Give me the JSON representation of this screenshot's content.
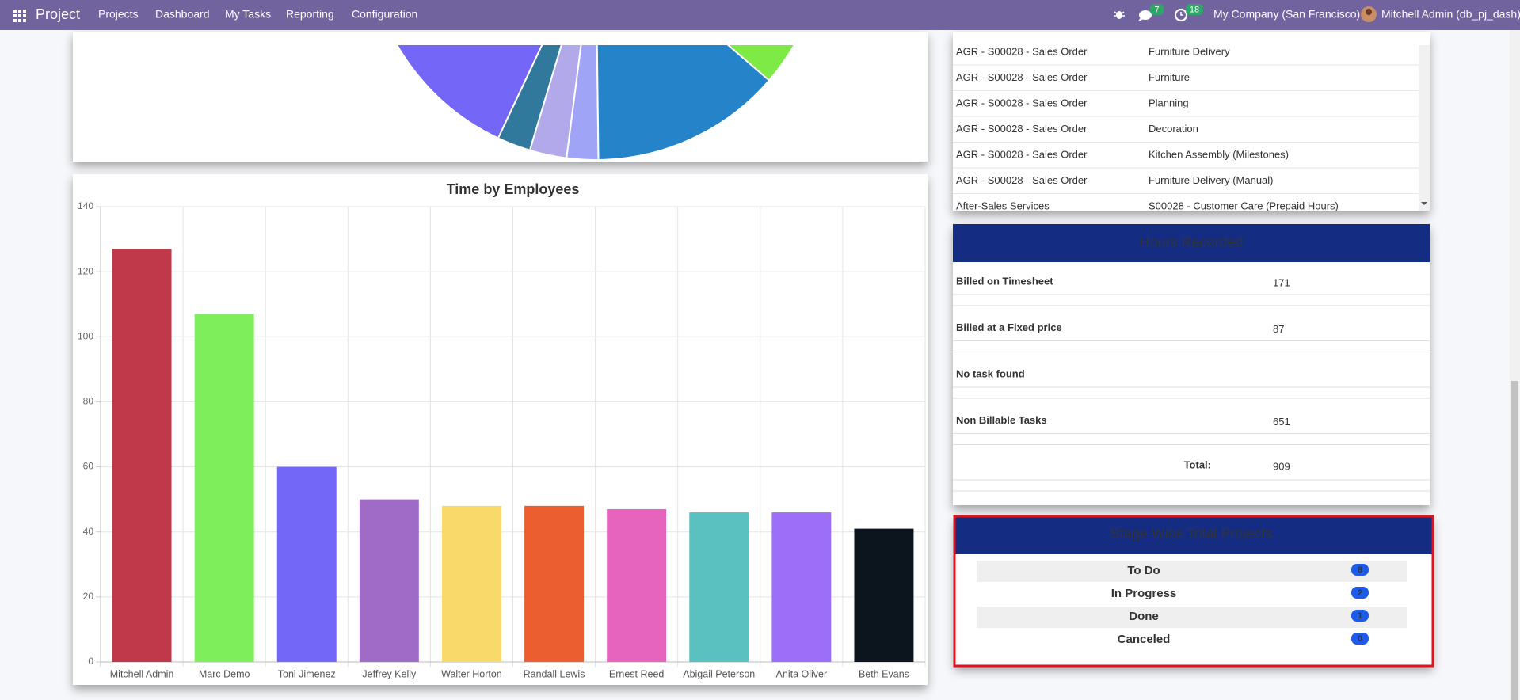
{
  "navbar": {
    "app": "Project",
    "menu": [
      "Projects",
      "Dashboard",
      "My Tasks",
      "Reporting",
      "Configuration"
    ],
    "messages_badge": "7",
    "activities_badge": "18",
    "company": "My Company (San Francisco)",
    "user": "Mitchell Admin (db_pj_dash)"
  },
  "chart_data": {
    "type": "bar",
    "title": "Time by Employees",
    "categories": [
      "Mitchell Admin",
      "Marc Demo",
      "Toni Jimenez",
      "Jeffrey Kelly",
      "Walter Horton",
      "Randall Lewis",
      "Ernest Reed",
      "Abigail Peterson",
      "Anita Oliver",
      "Beth Evans"
    ],
    "values": [
      127,
      107,
      60,
      50,
      48,
      48,
      47,
      46,
      46,
      41
    ],
    "colors": [
      "#c0394a",
      "#7eee5a",
      "#7367f8",
      "#9f6bc6",
      "#f9d96a",
      "#eb5e30",
      "#e764be",
      "#5bc1c0",
      "#9d6ef8",
      "#0c151d"
    ],
    "ylim": [
      0,
      140
    ],
    "yticks": [
      0,
      20,
      40,
      60,
      80,
      100,
      120,
      140
    ],
    "grid": true
  },
  "timesheet_table": {
    "rows": [
      [
        "AGR - S00028 - Sales Order",
        "Furniture Delivery"
      ],
      [
        "AGR - S00028 - Sales Order",
        "Furniture"
      ],
      [
        "AGR - S00028 - Sales Order",
        "Planning"
      ],
      [
        "AGR - S00028 - Sales Order",
        "Decoration"
      ],
      [
        "AGR - S00028 - Sales Order",
        "Kitchen Assembly (Milestones)"
      ],
      [
        "AGR - S00028 - Sales Order",
        "Furniture Delivery (Manual)"
      ],
      [
        "After-Sales Services",
        "S00028 - Customer Care (Prepaid Hours)"
      ]
    ]
  },
  "hours_recorded": {
    "title": "Hours Recorded",
    "rows": [
      {
        "label": "Billed on Timesheet",
        "value": 171
      },
      {
        "label": "Billed at a Fixed price",
        "value": 87
      },
      {
        "label": "No task found"
      },
      {
        "label": "Non Billable Tasks",
        "value": 651
      }
    ],
    "total_label": "Total:",
    "total": 909
  },
  "stage_wise": {
    "title": "Stage Wise Total Projects",
    "rows": [
      {
        "stage": "To Do",
        "count": 8
      },
      {
        "stage": "In Progress",
        "count": 2
      },
      {
        "stage": "Done",
        "count": 1
      },
      {
        "stage": "Canceled",
        "count": 0
      }
    ]
  }
}
